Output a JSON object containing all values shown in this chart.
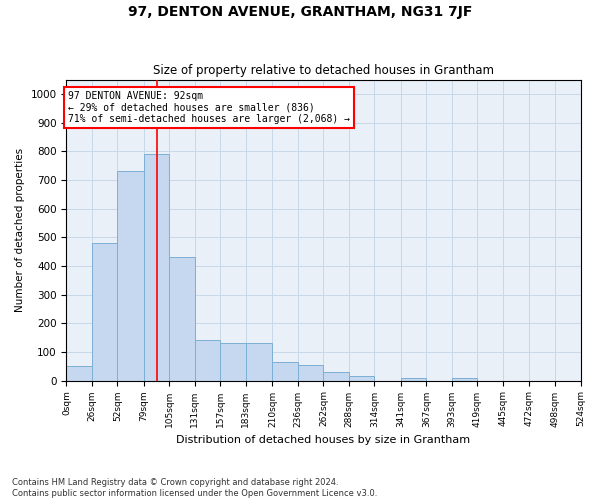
{
  "title": "97, DENTON AVENUE, GRANTHAM, NG31 7JF",
  "subtitle": "Size of property relative to detached houses in Grantham",
  "xlabel": "Distribution of detached houses by size in Grantham",
  "ylabel": "Number of detached properties",
  "bar_color": "#c5d8f0",
  "bar_edge_color": "#7bafd4",
  "bar_values": [
    50,
    480,
    730,
    790,
    430,
    140,
    130,
    130,
    65,
    55,
    30,
    15,
    0,
    10,
    0,
    10,
    0,
    0,
    0,
    0
  ],
  "x_labels": [
    "0sqm",
    "26sqm",
    "52sqm",
    "79sqm",
    "105sqm",
    "131sqm",
    "157sqm",
    "183sqm",
    "210sqm",
    "236sqm",
    "262sqm",
    "288sqm",
    "314sqm",
    "341sqm",
    "367sqm",
    "393sqm",
    "419sqm",
    "445sqm",
    "472sqm",
    "498sqm",
    "524sqm"
  ],
  "bin_edges": [
    0,
    26,
    52,
    79,
    105,
    131,
    157,
    183,
    210,
    236,
    262,
    288,
    314,
    341,
    367,
    393,
    419,
    445,
    472,
    498,
    524
  ],
  "ylim": [
    0,
    1050
  ],
  "yticks": [
    0,
    100,
    200,
    300,
    400,
    500,
    600,
    700,
    800,
    900,
    1000
  ],
  "vline_x": 92,
  "annotation_title": "97 DENTON AVENUE: 92sqm",
  "annotation_line1": "← 29% of detached houses are smaller (836)",
  "annotation_line2": "71% of semi-detached houses are larger (2,068) →",
  "annotation_box_color": "white",
  "annotation_box_edge_color": "red",
  "vline_color": "red",
  "grid_color": "#c8d8e8",
  "bg_color": "#eaf0f8",
  "footnote1": "Contains HM Land Registry data © Crown copyright and database right 2024.",
  "footnote2": "Contains public sector information licensed under the Open Government Licence v3.0."
}
